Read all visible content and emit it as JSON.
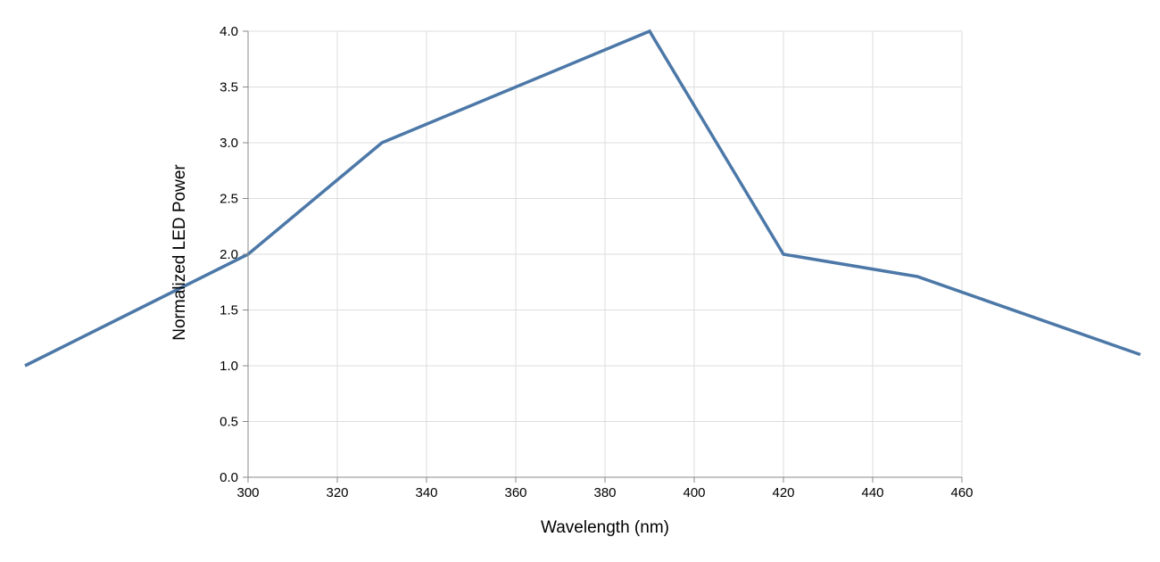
{
  "chart_data": {
    "type": "line",
    "title": "",
    "xlabel": "Wavelength (nm)",
    "ylabel": "Normalized LED Power",
    "xlim": [
      300,
      460
    ],
    "ylim": [
      0,
      4
    ],
    "x_ticks": [
      "300",
      "320",
      "340",
      "360",
      "380",
      "400",
      "420",
      "440",
      "460"
    ],
    "y_ticks": [
      "0.0",
      "0.5",
      "1.0",
      "1.5",
      "2.0",
      "2.5",
      "3.0",
      "3.5",
      "4.0"
    ],
    "grid": true,
    "series": [
      {
        "x": [
          250,
          300,
          330,
          390,
          420,
          450,
          500
        ],
        "y": [
          1.0,
          2.0,
          3.0,
          4.0,
          2.0,
          1.8,
          1.1
        ],
        "color": "#4c78a8"
      }
    ]
  }
}
